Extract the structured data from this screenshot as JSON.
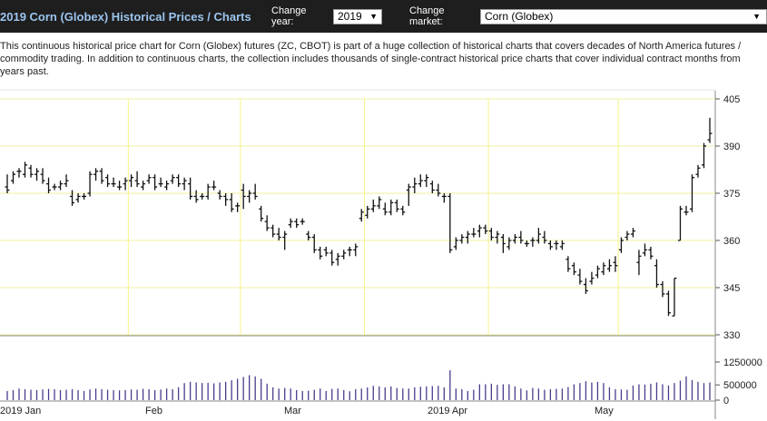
{
  "header": {
    "title": "2019 Corn (Globex) Historical Prices / Charts",
    "change_year_label": "Change year:",
    "year_value": "2019",
    "change_market_label": "Change market:",
    "market_value": "Corn (Globex)"
  },
  "description": "This continuous historical price chart for Corn (Globex) futures (ZC, CBOT) is part of a huge collection of historical charts that covers decades of North America futures / commodity trading. In addition to continuous charts, the collection includes thousands of single-contract historical price charts that cover individual contract months from years past.",
  "chart_data": {
    "type": "ohlc",
    "price_axis": {
      "ylim": [
        330,
        405
      ],
      "ticks": [
        405,
        390,
        375,
        360,
        345,
        330
      ]
    },
    "volume_axis": {
      "ylim": [
        0,
        1250000
      ],
      "ticks": [
        1250000,
        500000,
        0
      ]
    },
    "x_labels": [
      "2019 Jan",
      "Feb",
      "Mar",
      "2019 Apr",
      "May"
    ],
    "colors": {
      "bars": "#111111",
      "volume": "#4a3c8c",
      "grid": "#f7f38a",
      "line_color": "#f2f2a0"
    },
    "series": [
      {
        "d": "2019-01-02",
        "o": 377,
        "h": 381,
        "l": 375,
        "c": 376
      },
      {
        "d": "2019-01-03",
        "o": 379,
        "h": 382,
        "l": 378,
        "c": 381
      },
      {
        "d": "2019-01-04",
        "o": 382,
        "h": 383,
        "l": 380,
        "c": 382
      },
      {
        "d": "2019-01-07",
        "o": 381,
        "h": 385,
        "l": 380,
        "c": 384
      },
      {
        "d": "2019-01-08",
        "o": 383,
        "h": 384,
        "l": 380,
        "c": 381
      },
      {
        "d": "2019-01-09",
        "o": 381,
        "h": 383,
        "l": 379,
        "c": 382
      },
      {
        "d": "2019-01-10",
        "o": 381,
        "h": 383,
        "l": 378,
        "c": 379
      },
      {
        "d": "2019-01-11",
        "o": 378,
        "h": 380,
        "l": 375,
        "c": 376
      },
      {
        "d": "2019-01-14",
        "o": 377,
        "h": 378,
        "l": 376,
        "c": 377
      },
      {
        "d": "2019-01-15",
        "o": 377,
        "h": 379,
        "l": 376,
        "c": 378
      },
      {
        "d": "2019-01-16",
        "o": 378,
        "h": 381,
        "l": 377,
        "c": 379
      },
      {
        "d": "2019-01-17",
        "o": 374,
        "h": 376,
        "l": 371,
        "c": 372
      },
      {
        "d": "2019-01-18",
        "o": 373,
        "h": 375,
        "l": 372,
        "c": 374
      },
      {
        "d": "2019-01-22",
        "o": 374,
        "h": 375,
        "l": 373,
        "c": 374
      },
      {
        "d": "2019-01-23",
        "o": 375,
        "h": 382,
        "l": 374,
        "c": 381
      },
      {
        "d": "2019-01-24",
        "o": 381,
        "h": 383,
        "l": 379,
        "c": 382
      },
      {
        "d": "2019-01-25",
        "o": 382,
        "h": 383,
        "l": 378,
        "c": 379
      },
      {
        "d": "2019-01-28",
        "o": 380,
        "h": 381,
        "l": 377,
        "c": 378
      },
      {
        "d": "2019-01-29",
        "o": 378,
        "h": 380,
        "l": 377,
        "c": 378
      },
      {
        "d": "2019-01-30",
        "o": 377,
        "h": 379,
        "l": 376,
        "c": 377
      },
      {
        "d": "2019-01-31",
        "o": 378,
        "h": 380,
        "l": 376,
        "c": 379
      },
      {
        "d": "2019-02-01",
        "o": 379,
        "h": 381,
        "l": 377,
        "c": 380
      },
      {
        "d": "2019-02-04",
        "o": 379,
        "h": 382,
        "l": 377,
        "c": 378
      },
      {
        "d": "2019-02-05",
        "o": 377,
        "h": 379,
        "l": 376,
        "c": 378
      },
      {
        "d": "2019-02-06",
        "o": 379,
        "h": 381,
        "l": 378,
        "c": 380
      },
      {
        "d": "2019-02-07",
        "o": 380,
        "h": 381,
        "l": 376,
        "c": 377
      },
      {
        "d": "2019-02-08",
        "o": 378,
        "h": 380,
        "l": 377,
        "c": 378
      },
      {
        "d": "2019-02-11",
        "o": 377,
        "h": 379,
        "l": 376,
        "c": 378
      },
      {
        "d": "2019-02-12",
        "o": 379,
        "h": 381,
        "l": 378,
        "c": 380
      },
      {
        "d": "2019-02-13",
        "o": 380,
        "h": 381,
        "l": 377,
        "c": 378
      },
      {
        "d": "2019-02-14",
        "o": 378,
        "h": 380,
        "l": 376,
        "c": 379
      },
      {
        "d": "2019-02-15",
        "o": 378,
        "h": 380,
        "l": 373,
        "c": 374
      },
      {
        "d": "2019-02-19",
        "o": 374,
        "h": 376,
        "l": 372,
        "c": 373
      },
      {
        "d": "2019-02-20",
        "o": 374,
        "h": 375,
        "l": 373,
        "c": 374
      },
      {
        "d": "2019-02-21",
        "o": 374,
        "h": 378,
        "l": 373,
        "c": 377
      },
      {
        "d": "2019-02-22",
        "o": 377,
        "h": 379,
        "l": 376,
        "c": 377
      },
      {
        "d": "2019-02-25",
        "o": 375,
        "h": 376,
        "l": 373,
        "c": 374
      },
      {
        "d": "2019-02-26",
        "o": 374,
        "h": 375,
        "l": 371,
        "c": 373
      },
      {
        "d": "2019-02-27",
        "o": 373,
        "h": 375,
        "l": 369,
        "c": 370
      },
      {
        "d": "2019-02-28",
        "o": 371,
        "h": 372,
        "l": 369,
        "c": 371
      },
      {
        "d": "2019-03-01",
        "o": 376,
        "h": 378,
        "l": 370,
        "c": 374
      },
      {
        "d": "2019-03-04",
        "o": 374,
        "h": 376,
        "l": 372,
        "c": 375
      },
      {
        "d": "2019-03-05",
        "o": 375,
        "h": 378,
        "l": 373,
        "c": 374
      },
      {
        "d": "2019-03-06",
        "o": 370,
        "h": 371,
        "l": 366,
        "c": 367
      },
      {
        "d": "2019-03-07",
        "o": 366,
        "h": 368,
        "l": 363,
        "c": 364
      },
      {
        "d": "2019-03-08",
        "o": 364,
        "h": 365,
        "l": 361,
        "c": 362
      },
      {
        "d": "2019-03-11",
        "o": 362,
        "h": 364,
        "l": 360,
        "c": 361
      },
      {
        "d": "2019-03-12",
        "o": 361,
        "h": 363,
        "l": 357,
        "c": 362
      },
      {
        "d": "2019-03-13",
        "o": 365,
        "h": 367,
        "l": 364,
        "c": 366
      },
      {
        "d": "2019-03-14",
        "o": 366,
        "h": 367,
        "l": 364,
        "c": 365
      },
      {
        "d": "2019-03-15",
        "o": 366,
        "h": 367,
        "l": 365,
        "c": 366
      },
      {
        "d": "2019-03-18",
        "o": 362,
        "h": 363,
        "l": 360,
        "c": 361
      },
      {
        "d": "2019-03-19",
        "o": 361,
        "h": 362,
        "l": 356,
        "c": 357
      },
      {
        "d": "2019-03-20",
        "o": 357,
        "h": 358,
        "l": 354,
        "c": 355
      },
      {
        "d": "2019-03-21",
        "o": 357,
        "h": 358,
        "l": 355,
        "c": 356
      },
      {
        "d": "2019-03-22",
        "o": 356,
        "h": 357,
        "l": 352,
        "c": 353
      },
      {
        "d": "2019-03-25",
        "o": 354,
        "h": 356,
        "l": 352,
        "c": 355
      },
      {
        "d": "2019-03-26",
        "o": 355,
        "h": 357,
        "l": 354,
        "c": 356
      },
      {
        "d": "2019-03-27",
        "o": 357,
        "h": 358,
        "l": 355,
        "c": 357
      },
      {
        "d": "2019-03-28",
        "o": 357,
        "h": 359,
        "l": 355,
        "c": 358
      },
      {
        "d": "2019-03-29",
        "o": 367,
        "h": 370,
        "l": 366,
        "c": 369
      },
      {
        "d": "2019-04-01",
        "o": 368,
        "h": 371,
        "l": 367,
        "c": 370
      },
      {
        "d": "2019-04-02",
        "o": 370,
        "h": 373,
        "l": 369,
        "c": 371
      },
      {
        "d": "2019-04-03",
        "o": 371,
        "h": 374,
        "l": 370,
        "c": 373
      },
      {
        "d": "2019-04-04",
        "o": 370,
        "h": 372,
        "l": 368,
        "c": 369
      },
      {
        "d": "2019-04-05",
        "o": 369,
        "h": 373,
        "l": 368,
        "c": 372
      },
      {
        "d": "2019-04-08",
        "o": 372,
        "h": 373,
        "l": 369,
        "c": 370
      },
      {
        "d": "2019-04-09",
        "o": 370,
        "h": 371,
        "l": 368,
        "c": 369
      },
      {
        "d": "2019-04-10",
        "o": 376,
        "h": 378,
        "l": 371,
        "c": 377
      },
      {
        "d": "2019-04-11",
        "o": 377,
        "h": 380,
        "l": 375,
        "c": 378
      },
      {
        "d": "2019-04-12",
        "o": 378,
        "h": 381,
        "l": 377,
        "c": 379
      },
      {
        "d": "2019-04-15",
        "o": 379,
        "h": 381,
        "l": 377,
        "c": 380
      },
      {
        "d": "2019-04-16",
        "o": 378,
        "h": 379,
        "l": 375,
        "c": 376
      },
      {
        "d": "2019-04-17",
        "o": 376,
        "h": 378,
        "l": 374,
        "c": 375
      },
      {
        "d": "2019-04-18",
        "o": 374,
        "h": 375,
        "l": 372,
        "c": 374
      },
      {
        "d": "2019-04-22",
        "o": 374,
        "h": 375,
        "l": 356,
        "c": 357
      },
      {
        "d": "2019-04-23",
        "o": 358,
        "h": 361,
        "l": 357,
        "c": 360
      },
      {
        "d": "2019-04-24",
        "o": 360,
        "h": 362,
        "l": 359,
        "c": 361
      },
      {
        "d": "2019-04-25",
        "o": 361,
        "h": 363,
        "l": 359,
        "c": 362
      },
      {
        "d": "2019-04-26",
        "o": 362,
        "h": 364,
        "l": 361,
        "c": 362
      },
      {
        "d": "2019-04-29",
        "o": 363,
        "h": 365,
        "l": 361,
        "c": 364
      },
      {
        "d": "2019-04-30",
        "o": 364,
        "h": 365,
        "l": 362,
        "c": 363
      },
      {
        "d": "2019-05-01",
        "o": 363,
        "h": 364,
        "l": 360,
        "c": 361
      },
      {
        "d": "2019-05-02",
        "o": 361,
        "h": 363,
        "l": 359,
        "c": 362
      },
      {
        "d": "2019-05-03",
        "o": 361,
        "h": 362,
        "l": 356,
        "c": 359
      },
      {
        "d": "2019-05-06",
        "o": 358,
        "h": 361,
        "l": 357,
        "c": 360
      },
      {
        "d": "2019-05-07",
        "o": 360,
        "h": 362,
        "l": 359,
        "c": 361
      },
      {
        "d": "2019-05-08",
        "o": 361,
        "h": 363,
        "l": 359,
        "c": 360
      },
      {
        "d": "2019-05-09",
        "o": 359,
        "h": 360,
        "l": 358,
        "c": 359
      },
      {
        "d": "2019-05-10",
        "o": 360,
        "h": 361,
        "l": 358,
        "c": 360
      },
      {
        "d": "2019-05-13",
        "o": 360,
        "h": 364,
        "l": 359,
        "c": 362
      },
      {
        "d": "2019-05-14",
        "o": 361,
        "h": 363,
        "l": 359,
        "c": 360
      },
      {
        "d": "2019-05-15",
        "o": 359,
        "h": 360,
        "l": 357,
        "c": 358
      },
      {
        "d": "2019-05-16",
        "o": 359,
        "h": 360,
        "l": 357,
        "c": 359
      },
      {
        "d": "2019-05-17",
        "o": 358,
        "h": 360,
        "l": 357,
        "c": 359
      },
      {
        "d": "2019-05-20",
        "o": 354,
        "h": 355,
        "l": 350,
        "c": 351
      },
      {
        "d": "2019-05-21",
        "o": 352,
        "h": 353,
        "l": 349,
        "c": 350
      },
      {
        "d": "2019-05-22",
        "o": 349,
        "h": 351,
        "l": 346,
        "c": 347
      },
      {
        "d": "2019-05-23",
        "o": 346,
        "h": 348,
        "l": 343,
        "c": 344
      },
      {
        "d": "2019-05-24",
        "o": 347,
        "h": 350,
        "l": 346,
        "c": 348
      },
      {
        "d": "2019-05-28",
        "o": 349,
        "h": 352,
        "l": 348,
        "c": 351
      },
      {
        "d": "2019-05-29",
        "o": 350,
        "h": 353,
        "l": 349,
        "c": 352
      },
      {
        "d": "2019-05-30",
        "o": 351,
        "h": 354,
        "l": 350,
        "c": 352
      },
      {
        "d": "2019-05-31",
        "o": 353,
        "h": 355,
        "l": 350,
        "c": 352
      },
      {
        "d": "2019-06-03",
        "o": 357,
        "h": 361,
        "l": 356,
        "c": 360
      },
      {
        "d": "2019-06-04",
        "o": 361,
        "h": 363,
        "l": 360,
        "c": 362
      },
      {
        "d": "2019-06-05",
        "o": 362,
        "h": 364,
        "l": 361,
        "c": 363
      },
      {
        "d": "2019-06-06",
        "o": 353,
        "h": 357,
        "l": 349,
        "c": 355
      },
      {
        "d": "2019-06-07",
        "o": 356,
        "h": 359,
        "l": 355,
        "c": 357
      },
      {
        "d": "2019-06-10",
        "o": 357,
        "h": 358,
        "l": 354,
        "c": 355
      },
      {
        "d": "2019-06-11",
        "o": 352,
        "h": 354,
        "l": 345,
        "c": 346
      },
      {
        "d": "2019-06-12",
        "o": 346,
        "h": 347,
        "l": 342,
        "c": 343
      },
      {
        "d": "2019-06-13",
        "o": 343,
        "h": 344,
        "l": 336,
        "c": 337
      },
      {
        "d": "2019-06-14",
        "o": 336,
        "h": 348,
        "l": 336,
        "c": 348
      },
      {
        "d": "2019-06-17",
        "o": 360,
        "h": 371,
        "l": 360,
        "c": 370
      },
      {
        "d": "2019-06-18",
        "o": 369,
        "h": 371,
        "l": 368,
        "c": 369
      },
      {
        "d": "2019-06-19",
        "o": 370,
        "h": 381,
        "l": 369,
        "c": 380
      },
      {
        "d": "2019-06-20",
        "o": 381,
        "h": 384,
        "l": 380,
        "c": 383
      },
      {
        "d": "2019-06-21",
        "o": 384,
        "h": 391,
        "l": 383,
        "c": 390
      },
      {
        "d": "2019-06-24",
        "o": 392,
        "h": 399,
        "l": 391,
        "c": 394
      }
    ],
    "volume": [
      300000,
      330000,
      380000,
      360000,
      340000,
      330000,
      350000,
      370000,
      360000,
      330000,
      340000,
      360000,
      330000,
      300000,
      350000,
      380000,
      360000,
      340000,
      330000,
      320000,
      330000,
      350000,
      340000,
      370000,
      360000,
      330000,
      350000,
      380000,
      360000,
      420000,
      560000,
      600000,
      580000,
      560000,
      570000,
      550000,
      580000,
      600000,
      650000,
      700000,
      760000,
      820000,
      780000,
      700000,
      540000,
      420000,
      380000,
      400000,
      380000,
      330000,
      300000,
      310000,
      340000,
      380000,
      300000,
      370000,
      380000,
      330000,
      290000,
      360000,
      380000,
      420000,
      470000,
      450000,
      420000,
      450000,
      400000,
      380000,
      380000,
      420000,
      440000,
      450000,
      460000,
      470000,
      420000,
      980000,
      380000,
      360000,
      300000,
      340000,
      520000,
      520000,
      540000,
      500000,
      520000,
      520000,
      450000,
      380000,
      320000,
      400000,
      380000,
      340000,
      360000,
      370000,
      380000,
      430000,
      520000,
      560000,
      620000,
      580000,
      600000,
      560000,
      420000,
      360000,
      350000,
      340000,
      480000,
      520000,
      510000,
      540000,
      580000,
      520000,
      480000,
      560000,
      640000,
      780000,
      660000,
      600000,
      560000,
      580000,
      560000
    ]
  }
}
